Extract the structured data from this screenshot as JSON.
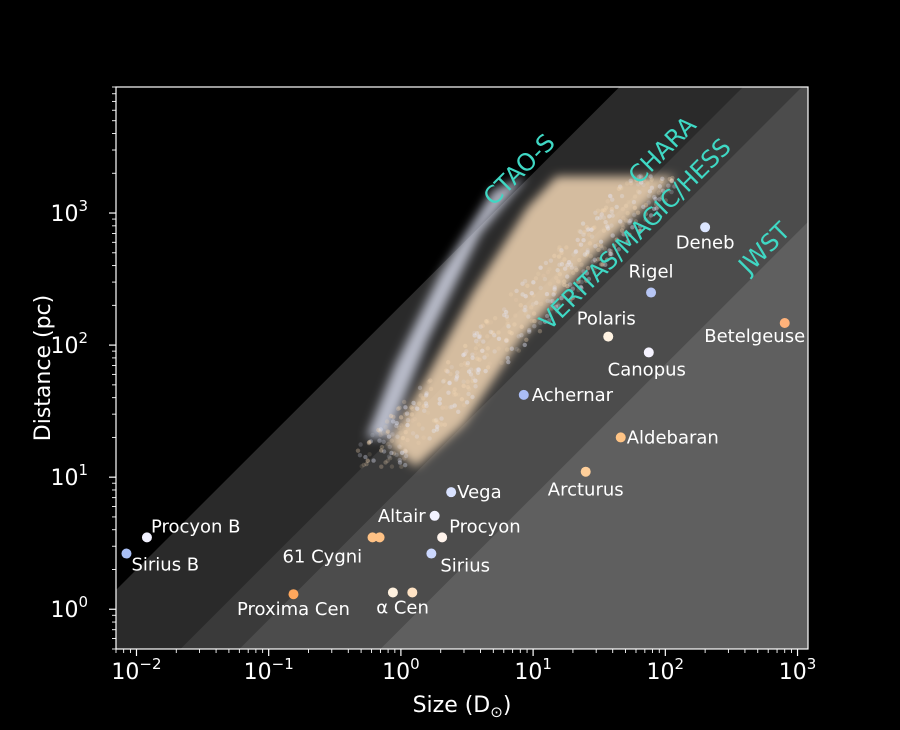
{
  "chart_data": {
    "type": "scatter",
    "title": "",
    "xlabel": "Size (D",
    "xlabel_sub": "⊙",
    "xlabel_close": ")",
    "ylabel": "Distance (pc)",
    "xscale": "log",
    "yscale": "log",
    "xlim": [
      0.007,
      1200
    ],
    "ylim": [
      0.5,
      9000
    ],
    "grid": false,
    "x_ticks": [
      {
        "value": 0.01,
        "base": "10",
        "exp": "−2"
      },
      {
        "value": 0.1,
        "base": "10",
        "exp": "−1"
      },
      {
        "value": 1,
        "base": "10",
        "exp": "0"
      },
      {
        "value": 10,
        "base": "10",
        "exp": "1"
      },
      {
        "value": 100,
        "base": "10",
        "exp": "2"
      },
      {
        "value": 1000,
        "base": "10",
        "exp": "3"
      }
    ],
    "y_ticks": [
      {
        "value": 1,
        "base": "10",
        "exp": "0"
      },
      {
        "value": 10,
        "base": "10",
        "exp": "1"
      },
      {
        "value": 100,
        "base": "10",
        "exp": "2"
      },
      {
        "value": 1000,
        "base": "10",
        "exp": "3"
      }
    ],
    "bands": [
      {
        "label": "CTAO-S",
        "size_at_1pc": 0.005,
        "fill": "#2a2a2a"
      },
      {
        "label": "CHARA",
        "size_at_1pc": 0.043,
        "fill": "#3a3a3a"
      },
      {
        "label": "VERITAS/MAGIC/HESS",
        "size_at_1pc": 0.12,
        "fill": "#4c4c4c"
      },
      {
        "label": "JWST",
        "size_at_1pc": 1.4,
        "fill": "#5f5f5f"
      }
    ],
    "stars": [
      {
        "name": "Deneb",
        "x": 200,
        "y": 780,
        "color": "#dce6ff"
      },
      {
        "name": "Rigel",
        "x": 78,
        "y": 250,
        "color": "#b7c6f5"
      },
      {
        "name": "Polaris",
        "x": 37,
        "y": 116,
        "color": "#fff3e2"
      },
      {
        "name": "Betelgeuse",
        "x": 800,
        "y": 147,
        "color": "#ffb27a"
      },
      {
        "name": "Canopus",
        "x": 75,
        "y": 88,
        "color": "#f5f3ff"
      },
      {
        "name": "Achernar",
        "x": 8.5,
        "y": 42,
        "color": "#aabdf5"
      },
      {
        "name": "Aldebaran",
        "x": 46,
        "y": 20,
        "color": "#ffc485"
      },
      {
        "name": "Arcturus",
        "x": 25,
        "y": 11,
        "color": "#ffcf9a"
      },
      {
        "name": "Vega",
        "x": 2.4,
        "y": 7.7,
        "color": "#d9e2ff"
      },
      {
        "name": "Altair",
        "x": 1.8,
        "y": 5.1,
        "color": "#f3f3ff"
      },
      {
        "name": "Procyon",
        "x": 2.05,
        "y": 3.5,
        "color": "#fff4ec"
      },
      {
        "name": "Sirius",
        "x": 1.7,
        "y": 2.64,
        "color": "#ccd8ff"
      },
      {
        "name": "Procyon B",
        "x": 0.012,
        "y": 3.5,
        "color": "#f2f2ff"
      },
      {
        "name": "Sirius B",
        "x": 0.0084,
        "y": 2.64,
        "color": "#a9bff5"
      },
      {
        "name": "61 Cygni A",
        "x": 0.61,
        "y": 3.5,
        "color": "#ffc285"
      },
      {
        "name": "61 Cygni B",
        "x": 0.69,
        "y": 3.5,
        "color": "#ffc285"
      },
      {
        "name": "Proxima Cen",
        "x": 0.154,
        "y": 1.3,
        "color": "#ffa75c"
      },
      {
        "name": "α Cen A",
        "x": 0.87,
        "y": 1.34,
        "color": "#fff1df"
      },
      {
        "name": "α Cen B",
        "x": 1.22,
        "y": 1.34,
        "color": "#ffe3c4"
      }
    ],
    "annotations": [
      "Procyon B",
      "Sirius B",
      "61 Cygni",
      "Proxima Cen",
      "α Cen",
      "Altair",
      "Vega",
      "Procyon",
      "Sirius",
      "Arcturus",
      "Aldebaran",
      "Achernar",
      "Canopus",
      "Polaris",
      "Betelgeuse",
      "Rigel",
      "Deneb"
    ],
    "catalog_cloud_colors": [
      "#f2d6b4",
      "#e8ecff"
    ]
  }
}
